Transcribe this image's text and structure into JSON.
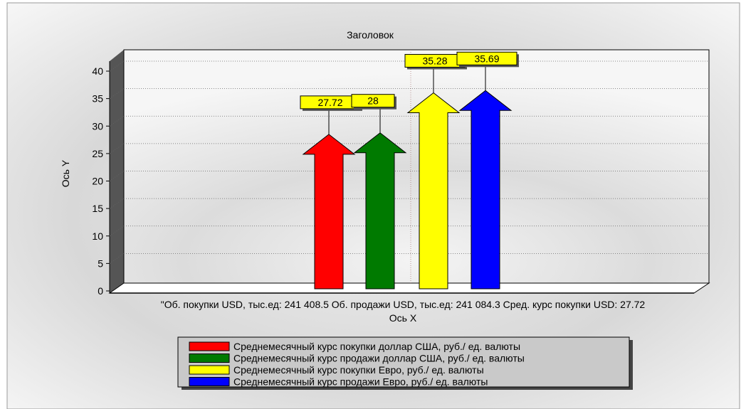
{
  "chart_data": {
    "type": "bar",
    "bar_shape": "arrow",
    "title": "Заголовок",
    "xlabel": "Ось X",
    "ylabel": "Ось Y",
    "ylim": [
      0,
      42
    ],
    "yticks": [
      0,
      5,
      10,
      15,
      20,
      25,
      30,
      35,
      40
    ],
    "grid": true,
    "category_label": "\"Об. покупки USD, тыс.ед: 241 408.5 Об. продажи USD, тыс.ед: 241 084.3 Сред. курс покупки USD: 27.72",
    "legend_position": "bottom",
    "series": [
      {
        "name": "Среднемесячный курс покупки доллар США, руб./ ед. валюты",
        "value": 27.72,
        "label": "27.72",
        "color": "#ff0000"
      },
      {
        "name": "Среднемесячный курс продажи доллар США, руб./ ед. валюты",
        "value": 28,
        "label": "28",
        "color": "#007a00"
      },
      {
        "name": "Среднемесячный курс покупки Евро, руб./ ед. валюты",
        "value": 35.28,
        "label": "35.28",
        "color": "#ffff00"
      },
      {
        "name": "Среднемесячный курс продажи Евро, руб./ ед. валюты",
        "value": 35.69,
        "label": "35.69",
        "color": "#0000ff"
      }
    ]
  }
}
